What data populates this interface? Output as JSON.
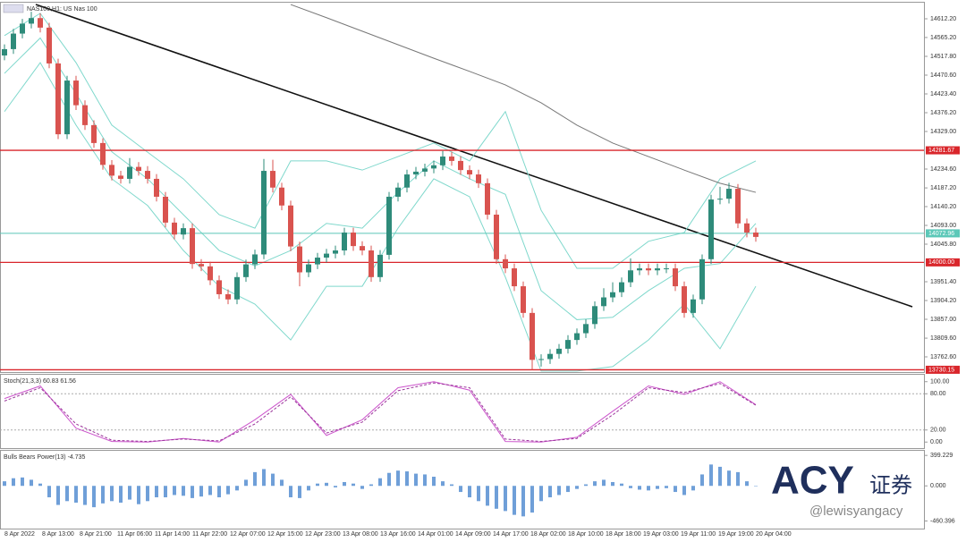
{
  "chart_data": [
    {
      "type": "candlestick",
      "title": "NAS100,H1: US Nas 100",
      "up_color": "#2e8b7a",
      "down_color": "#d9534f",
      "ylim": [
        13726.6,
        14648.2
      ],
      "yticks": [
        {
          "value": 14612.2,
          "label": "14612.20"
        },
        {
          "value": 14565.2,
          "label": "14565.20"
        },
        {
          "value": 14517.8,
          "label": "14517.80"
        },
        {
          "value": 14470.6,
          "label": "14470.60"
        },
        {
          "value": 14423.4,
          "label": "14423.40"
        },
        {
          "value": 14376.2,
          "label": "14376.20"
        },
        {
          "value": 14329,
          "label": "14329.00"
        },
        {
          "value": 14234.6,
          "label": "14234.60"
        },
        {
          "value": 14187.2,
          "label": "14187.20"
        },
        {
          "value": 14140.2,
          "label": "14140.20"
        },
        {
          "value": 14093,
          "label": "14093.00"
        },
        {
          "value": 14045.8,
          "label": "14045.80"
        },
        {
          "value": 13951.4,
          "label": "13951.40"
        },
        {
          "value": 13904.2,
          "label": "13904.20"
        },
        {
          "value": 13857,
          "label": "13857.00"
        },
        {
          "value": 13809.6,
          "label": "13809.60"
        },
        {
          "value": 13762.6,
          "label": "13762.60"
        }
      ],
      "levels": [
        {
          "value": 14281.67,
          "label": "14281.67"
        },
        {
          "value": 14000,
          "label": "14000.00"
        },
        {
          "value": 13730.15,
          "label": "13730.15"
        }
      ],
      "level_color": "#d9262b",
      "price": {
        "value": 14072.96,
        "label": "14072.96"
      },
      "price_color": "#5cc8b8",
      "xlabels": [
        "8 Apr 2022",
        "8 Apr 13:00",
        "8 Apr 21:00",
        "11 Apr 06:00",
        "11 Apr 14:00",
        "11 Apr 22:00",
        "12 Apr 07:00",
        "12 Apr 15:00",
        "12 Apr 23:00",
        "13 Apr 08:00",
        "13 Apr 16:00",
        "14 Apr 01:00",
        "14 Apr 09:00",
        "14 Apr 17:00",
        "18 Apr 02:00",
        "18 Apr 10:00",
        "18 Apr 18:00",
        "19 Apr 03:00",
        "19 Apr 11:00",
        "19 Apr 19:00",
        "20 Apr 04:00"
      ],
      "open": [
        14520,
        14536,
        14575,
        14600,
        14614,
        14590,
        14500,
        14322,
        14457,
        14395,
        14345,
        14300,
        14245,
        14218,
        14210,
        14240,
        14230,
        14210,
        14165,
        14100,
        14070,
        14086,
        13996,
        13990,
        13955,
        13920,
        13907,
        13963,
        13995,
        14020,
        14230,
        14188,
        14143,
        14040,
        13975,
        13995,
        14012,
        14022,
        14030,
        14075,
        14041,
        14030,
        13963,
        14019,
        14165,
        14188,
        14221,
        14228,
        14236,
        14244,
        14266,
        14255,
        14232,
        14221,
        14199,
        14120,
        14008,
        13985,
        13940,
        13873,
        13755,
        13757,
        13770,
        13783,
        13805,
        13822,
        13845,
        13890,
        13912,
        13925,
        13950,
        13980,
        13985,
        13980,
        13985,
        13985,
        13940,
        13873,
        13907,
        14008,
        14158,
        14160,
        14185,
        14098,
        14075
      ],
      "high": [
        14548,
        14587,
        14612,
        14630,
        14626,
        14602,
        14512,
        14469,
        14469,
        14407,
        14357,
        14312,
        14257,
        14230,
        14262,
        14252,
        14242,
        14222,
        14177,
        14112,
        14098,
        14098,
        14008,
        14002,
        13967,
        13932,
        13975,
        14007,
        14032,
        14260,
        14258,
        14200,
        14155,
        14052,
        14007,
        14024,
        14034,
        14042,
        14087,
        14087,
        14053,
        14042,
        14031,
        14177,
        14200,
        14233,
        14240,
        14248,
        14256,
        14280,
        14278,
        14267,
        14244,
        14233,
        14211,
        14132,
        14020,
        13997,
        13952,
        13885,
        13769,
        13782,
        13795,
        13817,
        13834,
        13857,
        13902,
        13935,
        13950,
        13962,
        14010,
        13997,
        13997,
        13997,
        13997,
        13997,
        13952,
        13919,
        14020,
        14170,
        14190,
        14200,
        14197,
        14110,
        14087
      ],
      "low": [
        14508,
        14524,
        14563,
        14588,
        14578,
        14488,
        14310,
        14310,
        14383,
        14333,
        14288,
        14233,
        14206,
        14198,
        14198,
        14218,
        14198,
        14153,
        14088,
        14058,
        14058,
        13984,
        13978,
        13943,
        13908,
        13895,
        13895,
        13951,
        13983,
        14008,
        14176,
        14131,
        14028,
        13940,
        13963,
        13983,
        14000,
        14010,
        14018,
        14029,
        14018,
        13951,
        13951,
        14007,
        14153,
        14176,
        14209,
        14216,
        14224,
        14232,
        14243,
        14220,
        14209,
        14187,
        14108,
        13996,
        13973,
        13928,
        13861,
        13730,
        13738,
        13745,
        13758,
        13771,
        13793,
        13810,
        13833,
        13878,
        13900,
        13913,
        13938,
        13968,
        13968,
        13968,
        13973,
        13928,
        13861,
        13861,
        13895,
        13996,
        14146,
        14148,
        14086,
        14063,
        14052
      ],
      "close": [
        14536,
        14575,
        14600,
        14614,
        14590,
        14500,
        14322,
        14457,
        14395,
        14345,
        14300,
        14245,
        14218,
        14210,
        14240,
        14230,
        14210,
        14165,
        14100,
        14070,
        14086,
        13996,
        13990,
        13955,
        13920,
        13907,
        13963,
        13995,
        14020,
        14230,
        14188,
        14143,
        14040,
        13975,
        13995,
        14012,
        14022,
        14030,
        14075,
        14041,
        14030,
        13963,
        14019,
        14165,
        14188,
        14221,
        14228,
        14236,
        14244,
        14266,
        14255,
        14232,
        14221,
        14199,
        14120,
        14008,
        13985,
        13940,
        13873,
        13755,
        13757,
        13770,
        13783,
        13805,
        13822,
        13845,
        13890,
        13912,
        13925,
        13950,
        13980,
        13985,
        13980,
        13985,
        13985,
        13940,
        13873,
        13907,
        14008,
        14158,
        14160,
        14185,
        14098,
        14075,
        14064
      ],
      "series": [
        {
          "color": "#7fd8cc",
          "values": [
            14570,
            14626,
            14502,
            14345,
            14277,
            14210,
            14120,
            14086,
            14255,
            14255,
            14232,
            14266,
            14300,
            14255,
            14379,
            14131,
            13985,
            13985,
            14053,
            14075,
            14210,
            14255
          ]
        },
        {
          "color": "#7fd8cc",
          "values": [
            14475,
            14564,
            14424,
            14278,
            14210,
            14120,
            14030,
            13991,
            14030,
            14098,
            14086,
            14176,
            14255,
            14210,
            14171,
            13929,
            13856,
            13862,
            13929,
            13985,
            13997,
            14098
          ]
        },
        {
          "color": "#7fd8cc",
          "values": [
            14379,
            14502,
            14345,
            14210,
            14143,
            14030,
            13940,
            13895,
            13805,
            13940,
            13940,
            14086,
            14210,
            14165,
            13963,
            13727,
            13727,
            13738,
            13805,
            13895,
            13783,
            13940
          ]
        },
        {
          "color": "#777777",
          "values": [
            null,
            null,
            null,
            null,
            null,
            null,
            null,
            null,
            14648,
            14615,
            14581,
            14547,
            14513,
            14480,
            14446,
            14401,
            14345,
            14300,
            14266,
            14232,
            14199,
            14176
          ]
        }
      ]
    },
    {
      "type": "line",
      "title": "Stoch(21,3,3) 60.83 61.56",
      "ylim": [
        -8.5,
        110
      ],
      "yticks": [
        {
          "value": 100,
          "label": "100.00"
        },
        {
          "value": 80,
          "label": "80.00"
        },
        {
          "value": 20,
          "label": "20.00"
        },
        {
          "value": 0,
          "label": "0.00"
        }
      ],
      "levels": [
        80,
        20
      ],
      "series": [
        {
          "color": "#cc55cc",
          "dashed": false,
          "values": [
            72,
            93,
            23,
            1,
            0,
            6,
            0,
            37,
            79,
            11,
            37,
            90,
            100,
            86,
            1,
            0,
            8,
            51,
            93,
            79,
            100,
            62
          ]
        },
        {
          "color": "#993399",
          "dashed": true,
          "values": [
            68,
            90,
            30,
            3,
            1,
            5,
            2,
            30,
            75,
            15,
            33,
            85,
            98,
            90,
            5,
            1,
            6,
            45,
            90,
            82,
            97,
            61
          ]
        }
      ]
    },
    {
      "type": "bar",
      "title": "Bulls Bears Power(13) -4.735",
      "ylim": [
        -560,
        460
      ],
      "color": "#6f9fd8",
      "yticks": [
        {
          "value": 399.229,
          "label": "399.229"
        },
        {
          "value": 0,
          "label": "0.000"
        },
        {
          "value": -460.396,
          "label": "-460.396"
        }
      ],
      "values": [
        60,
        100,
        110,
        80,
        30,
        -150,
        -250,
        -200,
        -220,
        -250,
        -280,
        -230,
        -200,
        -220,
        -180,
        -240,
        -200,
        -150,
        -150,
        -120,
        -130,
        -160,
        -140,
        -120,
        -150,
        -110,
        -60,
        80,
        180,
        220,
        160,
        80,
        -150,
        -160,
        -60,
        30,
        40,
        -20,
        50,
        30,
        -40,
        20,
        100,
        170,
        200,
        190,
        160,
        150,
        120,
        60,
        20,
        -80,
        -150,
        -200,
        -260,
        -300,
        -330,
        -380,
        -400,
        -350,
        -200,
        -150,
        -120,
        -80,
        -40,
        20,
        60,
        80,
        50,
        30,
        -30,
        -50,
        -60,
        -40,
        -30,
        -80,
        -120,
        -60,
        150,
        280,
        250,
        200,
        180,
        60,
        -5
      ]
    }
  ],
  "watermark": {
    "brand": "ACY",
    "brand_cn": "证券",
    "handle": "@lewisyangacy"
  }
}
